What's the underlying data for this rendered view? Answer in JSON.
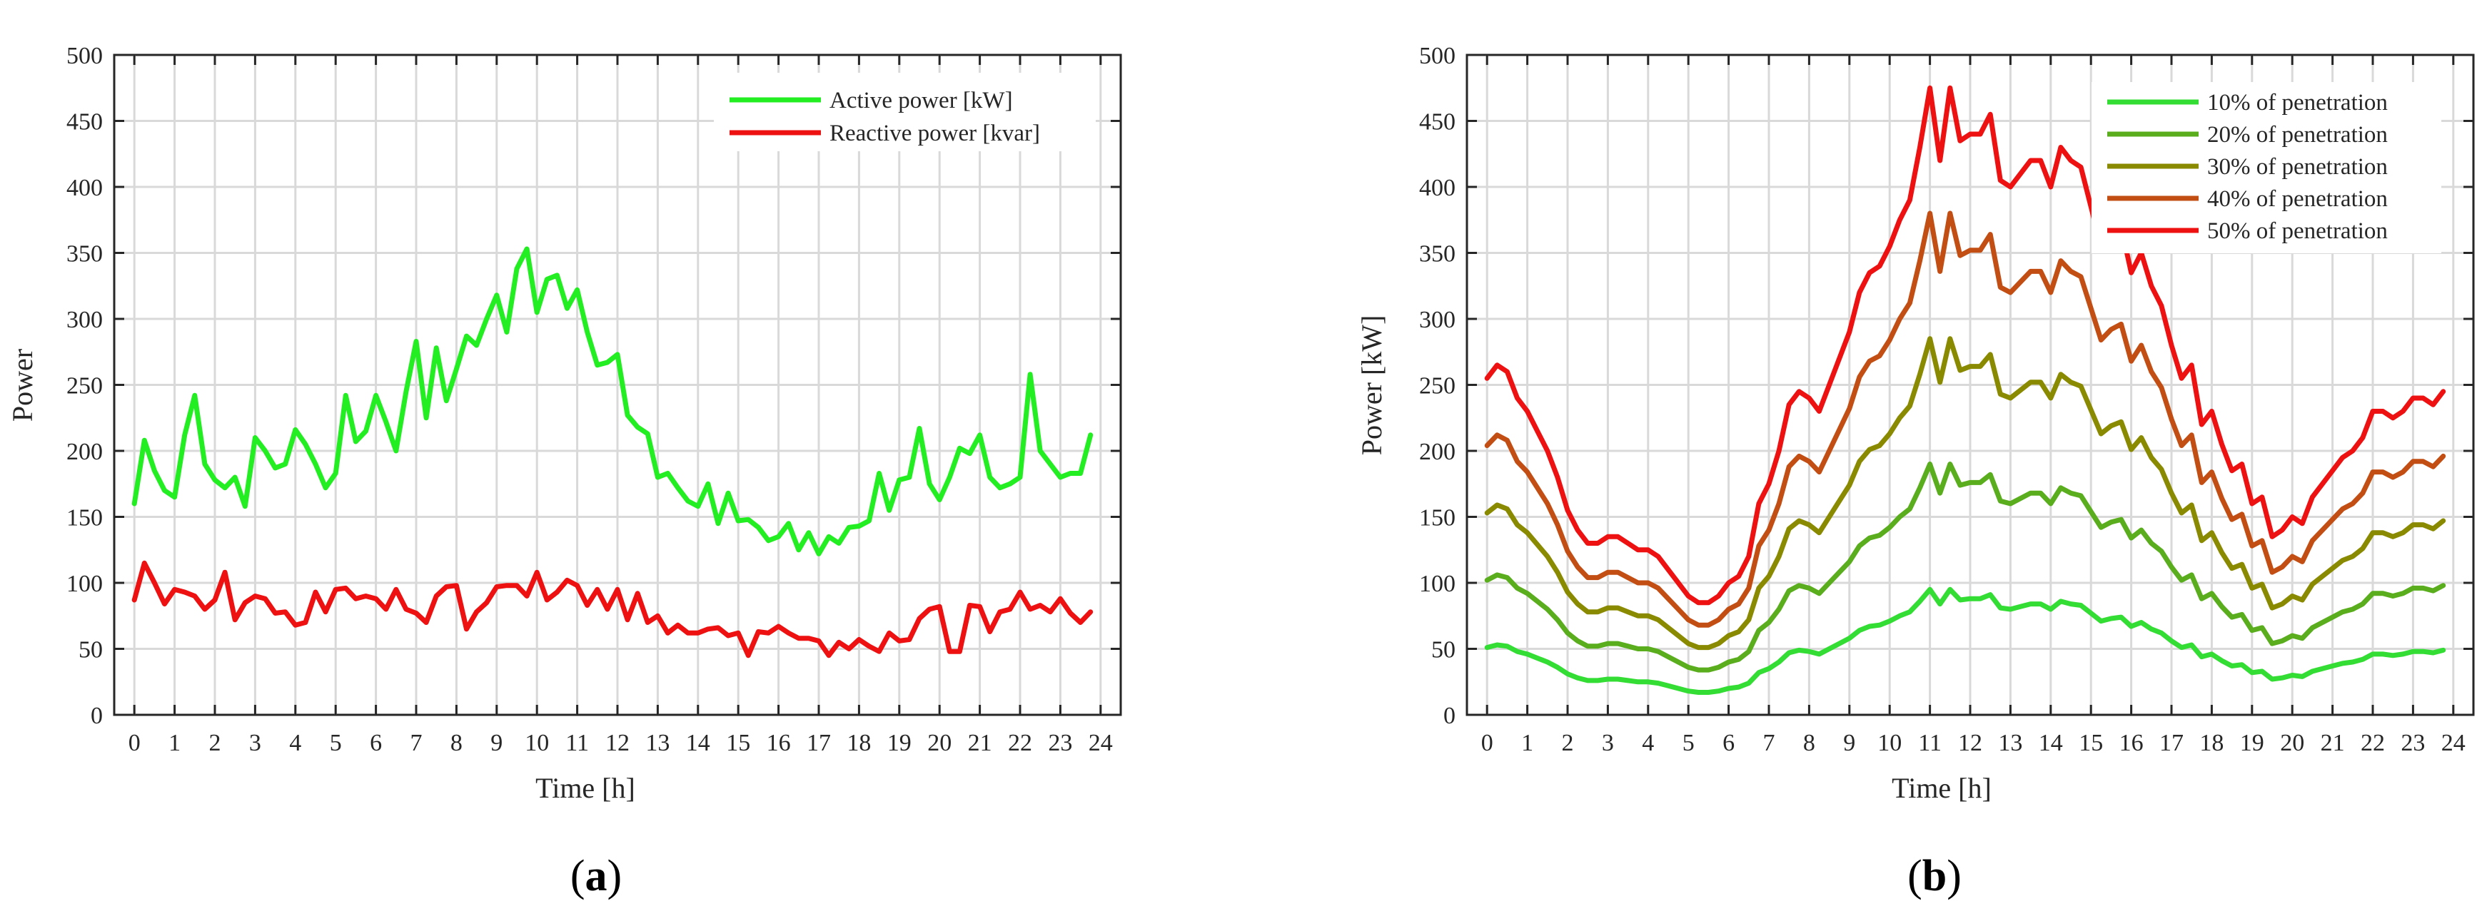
{
  "chart_data": [
    {
      "type": "line",
      "panel_label": "a",
      "xlabel": "Time [h]",
      "ylabel": "Power",
      "xlim": [
        -0.5,
        24.5
      ],
      "ylim": [
        0,
        500
      ],
      "xticks": [
        0,
        1,
        2,
        3,
        4,
        5,
        6,
        7,
        8,
        9,
        10,
        11,
        12,
        13,
        14,
        15,
        16,
        17,
        18,
        19,
        20,
        21,
        22,
        23,
        24
      ],
      "yticks": [
        0,
        50,
        100,
        150,
        200,
        250,
        300,
        350,
        400,
        450,
        500
      ],
      "grid": true,
      "legend_position": "top-right",
      "x": [
        0,
        0.25,
        0.5,
        0.75,
        1,
        1.25,
        1.5,
        1.75,
        2,
        2.25,
        2.5,
        2.75,
        3,
        3.25,
        3.5,
        3.75,
        4,
        4.25,
        4.5,
        4.75,
        5,
        5.25,
        5.5,
        5.75,
        6,
        6.25,
        6.5,
        6.75,
        7,
        7.25,
        7.5,
        7.75,
        8,
        8.25,
        8.5,
        8.75,
        9,
        9.25,
        9.5,
        9.75,
        10,
        10.25,
        10.5,
        10.75,
        11,
        11.25,
        11.5,
        11.75,
        12,
        12.25,
        12.5,
        12.75,
        13,
        13.25,
        13.5,
        13.75,
        14,
        14.25,
        14.5,
        14.75,
        15,
        15.25,
        15.5,
        15.75,
        16,
        16.25,
        16.5,
        16.75,
        17,
        17.25,
        17.5,
        17.75,
        18,
        18.25,
        18.5,
        18.75,
        19,
        19.25,
        19.5,
        19.75,
        20,
        20.25,
        20.5,
        20.75,
        21,
        21.25,
        21.5,
        21.75,
        22,
        22.25,
        22.5,
        22.75,
        23,
        23.25,
        23.5,
        23.75
      ],
      "series": [
        {
          "name": "Active power [kW]",
          "color": "#22ee22",
          "values": [
            160,
            208,
            185,
            170,
            165,
            212,
            242,
            190,
            178,
            172,
            180,
            158,
            210,
            200,
            187,
            190,
            216,
            205,
            190,
            172,
            183,
            242,
            207,
            215,
            242,
            222,
            200,
            245,
            283,
            225,
            278,
            238,
            262,
            287,
            280,
            300,
            318,
            290,
            338,
            353,
            305,
            330,
            333,
            308,
            322,
            290,
            265,
            267,
            273,
            227,
            218,
            213,
            180,
            183,
            172,
            162,
            158,
            175,
            145,
            168,
            147,
            148,
            142,
            132,
            135,
            145,
            125,
            138,
            122,
            135,
            130,
            142,
            143,
            147,
            183,
            155,
            178,
            180,
            217,
            175,
            163,
            180,
            202,
            198,
            212,
            180,
            172,
            175,
            180,
            258,
            200,
            190,
            180,
            183,
            183,
            212
          ]
        },
        {
          "name": "Reactive power [kvar]",
          "color": "#ee1111",
          "values": [
            87,
            115,
            100,
            84,
            95,
            93,
            90,
            80,
            87,
            108,
            72,
            85,
            90,
            88,
            77,
            78,
            68,
            70,
            93,
            78,
            95,
            96,
            88,
            90,
            88,
            80,
            95,
            80,
            77,
            70,
            90,
            97,
            98,
            65,
            78,
            85,
            97,
            98,
            98,
            90,
            108,
            87,
            93,
            102,
            98,
            83,
            95,
            80,
            95,
            72,
            92,
            70,
            75,
            62,
            68,
            62,
            62,
            65,
            66,
            60,
            62,
            45,
            63,
            62,
            67,
            62,
            58,
            58,
            56,
            45,
            55,
            50,
            57,
            52,
            48,
            62,
            56,
            57,
            73,
            80,
            82,
            48,
            48,
            83,
            82,
            63,
            78,
            80,
            93,
            80,
            83,
            78,
            88,
            77,
            70,
            78
          ]
        }
      ]
    },
    {
      "type": "line",
      "panel_label": "b",
      "xlabel": "Time [h]",
      "ylabel": "Power [kW]",
      "xlim": [
        -0.5,
        24.5
      ],
      "ylim": [
        0,
        500
      ],
      "xticks": [
        0,
        1,
        2,
        3,
        4,
        5,
        6,
        7,
        8,
        9,
        10,
        11,
        12,
        13,
        14,
        15,
        16,
        17,
        18,
        19,
        20,
        21,
        22,
        23,
        24
      ],
      "yticks": [
        0,
        50,
        100,
        150,
        200,
        250,
        300,
        350,
        400,
        450,
        500
      ],
      "grid": true,
      "legend_position": "top-right",
      "x": [
        0,
        0.25,
        0.5,
        0.75,
        1,
        1.25,
        1.5,
        1.75,
        2,
        2.25,
        2.5,
        2.75,
        3,
        3.25,
        3.5,
        3.75,
        4,
        4.25,
        4.5,
        4.75,
        5,
        5.25,
        5.5,
        5.75,
        6,
        6.25,
        6.5,
        6.75,
        7,
        7.25,
        7.5,
        7.75,
        8,
        8.25,
        8.5,
        8.75,
        9,
        9.25,
        9.5,
        9.75,
        10,
        10.25,
        10.5,
        10.75,
        11,
        11.25,
        11.5,
        11.75,
        12,
        12.25,
        12.5,
        12.75,
        13,
        13.25,
        13.5,
        13.75,
        14,
        14.25,
        14.5,
        14.75,
        15,
        15.25,
        15.5,
        15.75,
        16,
        16.25,
        16.5,
        16.75,
        17,
        17.25,
        17.5,
        17.75,
        18,
        18.25,
        18.5,
        18.75,
        19,
        19.25,
        19.5,
        19.75,
        20,
        20.25,
        20.5,
        20.75,
        21,
        21.25,
        21.5,
        21.75,
        22,
        22.25,
        22.5,
        22.75,
        23,
        23.25,
        23.5,
        23.75
      ],
      "base_series": [
        51,
        53,
        52,
        48,
        46,
        43,
        40,
        36,
        31,
        28,
        26,
        26,
        27,
        27,
        26,
        25,
        25,
        24,
        22,
        20,
        18,
        17,
        17,
        18,
        20,
        21,
        24,
        32,
        35,
        40,
        47,
        49,
        48,
        46,
        50,
        54,
        58,
        64,
        67,
        68,
        71,
        75,
        78,
        86,
        95,
        84,
        95,
        87,
        88,
        88,
        91,
        81,
        80,
        82,
        84,
        84,
        80,
        86,
        84,
        83,
        77,
        71,
        73,
        74,
        67,
        70,
        65,
        62,
        56,
        51,
        53,
        44,
        46,
        41,
        37,
        38,
        32,
        33,
        27,
        28,
        30,
        29,
        33,
        35,
        37,
        39,
        40,
        42,
        46,
        46,
        45,
        46,
        48,
        48,
        47,
        49
      ],
      "series": [
        {
          "name": "10% of penetration",
          "color": "#33dd33",
          "multiplier": 1
        },
        {
          "name": "20% of penetration",
          "color": "#5aae1e",
          "multiplier": 2
        },
        {
          "name": "30% of penetration",
          "color": "#8a8a00",
          "multiplier": 3
        },
        {
          "name": "40% of penetration",
          "color": "#c24e14",
          "multiplier": 4
        },
        {
          "name": "50% of penetration",
          "color": "#ee1111",
          "multiplier": 5
        }
      ]
    }
  ]
}
